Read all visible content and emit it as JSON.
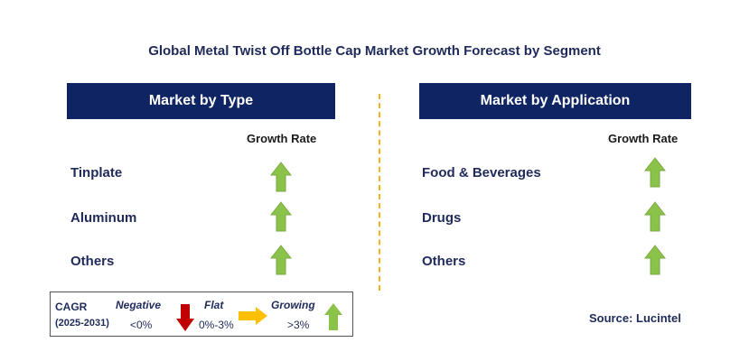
{
  "title": "Global Metal Twist Off Bottle Cap Market Growth Forecast by Segment",
  "left_panel": {
    "header": "Market by Type",
    "column_header": "Growth Rate",
    "rows": [
      {
        "label": "Tinplate",
        "trend": "growing"
      },
      {
        "label": "Aluminum",
        "trend": "growing"
      },
      {
        "label": "Others",
        "trend": "growing"
      }
    ]
  },
  "right_panel": {
    "header": "Market by Application",
    "column_header": "Growth Rate",
    "rows": [
      {
        "label": "Food & Beverages",
        "trend": "growing"
      },
      {
        "label": "Drugs",
        "trend": "growing"
      },
      {
        "label": "Others",
        "trend": "growing"
      }
    ]
  },
  "legend": {
    "cagr_label": "CAGR",
    "period": "(2025-2031)",
    "negative_label": "Negative",
    "negative_range": "<0%",
    "flat_label": "Flat",
    "flat_range": "0%-3%",
    "growing_label": "Growing",
    "growing_range": ">3%"
  },
  "source": "Source: Lucintel",
  "colors": {
    "header_bg": "#0f2563",
    "growing": "#8bc34a",
    "negative": "#c00000",
    "flat": "#ffc000",
    "divider": "#f2b21b"
  }
}
